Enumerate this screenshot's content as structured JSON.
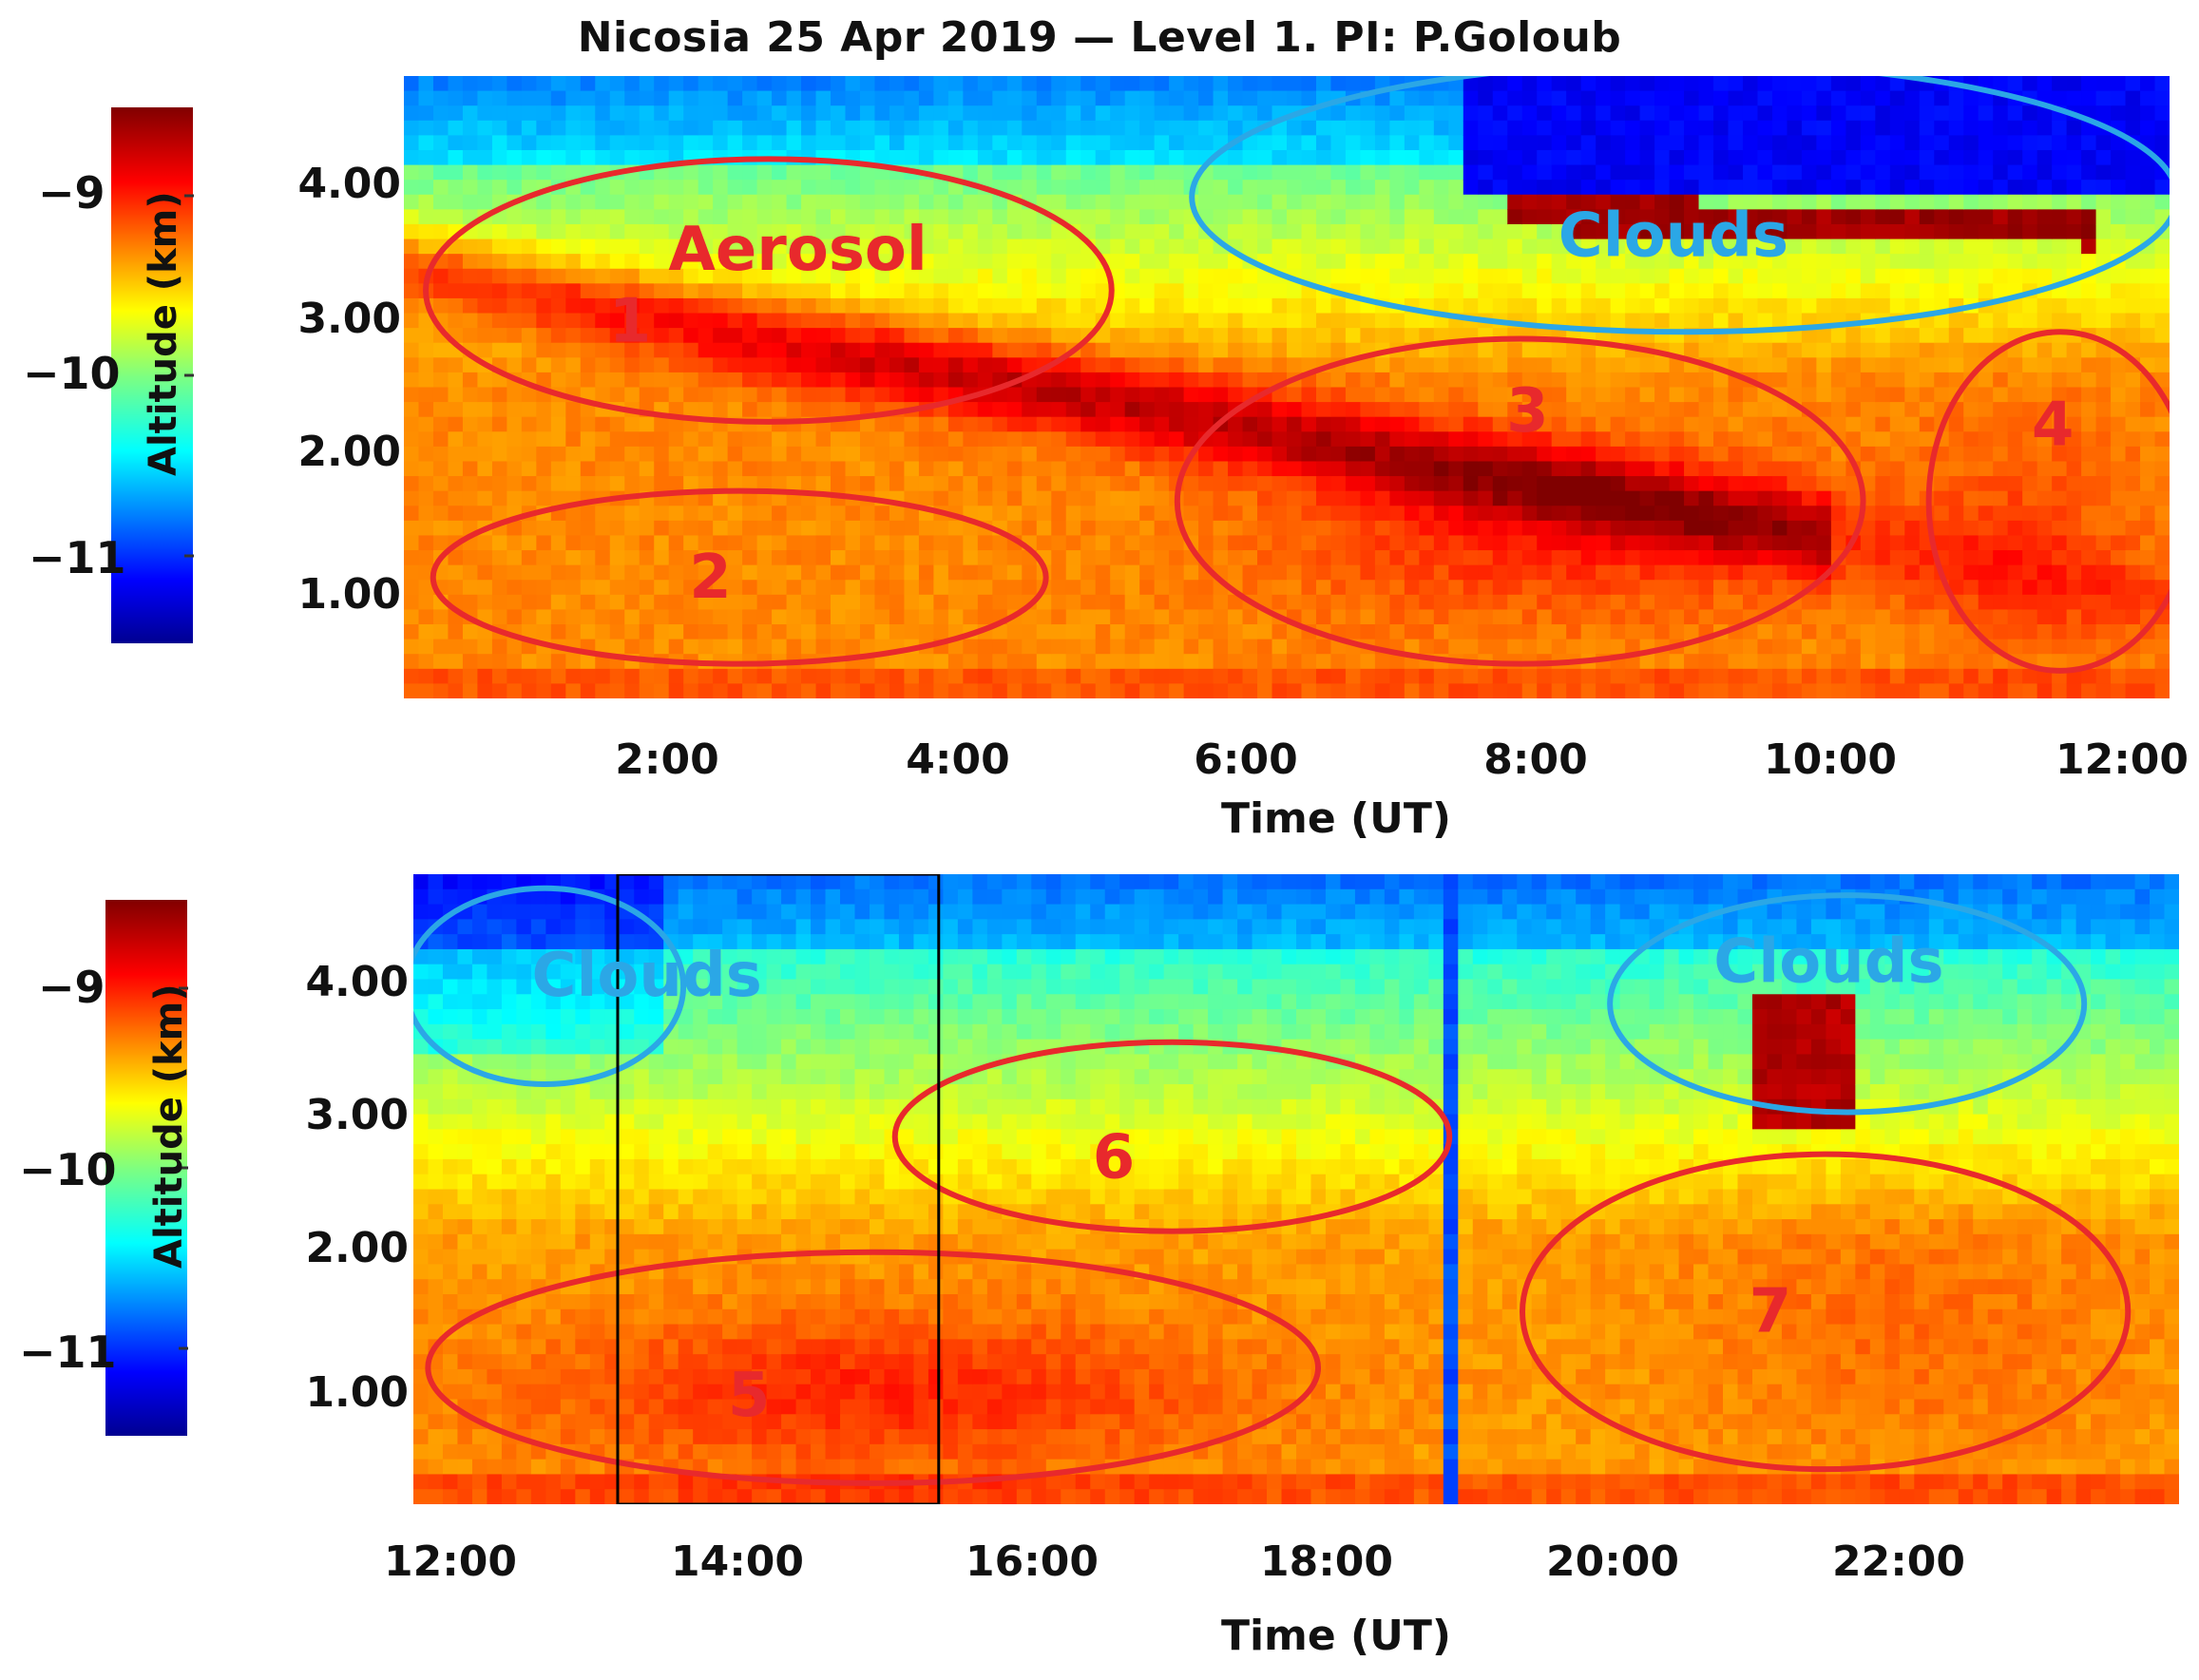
{
  "title": "Nicosia 25 Apr 2019 — Level 1. PI: P.Goloub",
  "colors": {
    "annotation_red": "#e8292c",
    "annotation_blue": "#2ba7e6",
    "box_black": "#000000"
  },
  "chart_data": [
    {
      "type": "heatmap",
      "panel": "top",
      "xlabel": "Time (UT)",
      "ylabel": "Altitude (km)",
      "x_ticks": [
        "2:00",
        "4:00",
        "6:00",
        "8:00",
        "10:00",
        "12:00"
      ],
      "y_ticks": [
        "1.00",
        "2.00",
        "3.00",
        "4.00"
      ],
      "xlim": [
        0.2,
        12.3
      ],
      "ylim": [
        0.3,
        4.8
      ],
      "colorbar": {
        "ticks": [
          "−9",
          "−10",
          "−11"
        ],
        "range": [
          -11.5,
          -8.5
        ],
        "colormap": "jet"
      },
      "annotations": [
        {
          "text": "Aerosol",
          "color": "red",
          "center": [
            2.9,
            3.52
          ]
        },
        {
          "text": "1",
          "color": "red",
          "center": [
            1.75,
            3.0
          ]
        },
        {
          "text": "2",
          "color": "red",
          "center": [
            2.3,
            1.15
          ]
        },
        {
          "text": "3",
          "color": "red",
          "center": [
            7.9,
            2.35
          ]
        },
        {
          "text": "4",
          "color": "red",
          "center": [
            11.5,
            2.25
          ]
        },
        {
          "text": "Clouds",
          "color": "blue",
          "center": [
            8.9,
            3.62
          ]
        }
      ],
      "regions": [
        {
          "label": "1",
          "shape": "ellipse",
          "color": "red",
          "x_range": [
            0.35,
            5.05
          ],
          "y_range": [
            2.3,
            4.2
          ]
        },
        {
          "label": "2",
          "shape": "ellipse",
          "color": "red",
          "x_range": [
            0.4,
            4.6
          ],
          "y_range": [
            0.55,
            1.8
          ]
        },
        {
          "label": "3",
          "shape": "ellipse",
          "color": "red",
          "x_range": [
            5.5,
            10.2
          ],
          "y_range": [
            0.55,
            2.9
          ]
        },
        {
          "label": "4",
          "shape": "ellipse",
          "color": "red",
          "x_range": [
            10.65,
            12.45
          ],
          "y_range": [
            0.5,
            2.95
          ]
        },
        {
          "label": "Clouds",
          "shape": "ellipse",
          "color": "blue",
          "x_range": [
            5.6,
            12.35
          ],
          "y_range": [
            2.95,
            4.9
          ]
        }
      ]
    },
    {
      "type": "heatmap",
      "panel": "bottom",
      "xlabel": "Time (UT)",
      "ylabel": "Altitude (km)",
      "x_ticks": [
        "12:00",
        "14:00",
        "16:00",
        "18:00",
        "20:00",
        "22:00"
      ],
      "y_ticks": [
        "1.00",
        "2.00",
        "3.00",
        "4.00"
      ],
      "xlim": [
        11.8,
        23.9
      ],
      "ylim": [
        0.3,
        4.8
      ],
      "colorbar": {
        "ticks": [
          "−9",
          "−10",
          "−11"
        ],
        "range": [
          -11.5,
          -8.5
        ],
        "colormap": "jet"
      },
      "annotations": [
        {
          "text": "Clouds",
          "color": "blue",
          "center": [
            13.4,
            4.05
          ]
        },
        {
          "text": "Clouds",
          "color": "blue",
          "center": [
            21.5,
            4.15
          ]
        },
        {
          "text": "5",
          "color": "red",
          "center": [
            14.1,
            1.05
          ]
        },
        {
          "text": "6",
          "color": "red",
          "center": [
            16.6,
            2.75
          ]
        },
        {
          "text": "7",
          "color": "red",
          "center": [
            21.1,
            1.65
          ]
        }
      ],
      "regions": [
        {
          "label": "5",
          "shape": "ellipse",
          "color": "red",
          "x_range": [
            11.9,
            18.0
          ],
          "y_range": [
            0.45,
            2.1
          ]
        },
        {
          "label": "6",
          "shape": "ellipse",
          "color": "red",
          "x_range": [
            15.1,
            18.9
          ],
          "y_range": [
            2.25,
            3.6
          ]
        },
        {
          "label": "7",
          "shape": "ellipse",
          "color": "red",
          "x_range": [
            19.4,
            23.55
          ],
          "y_range": [
            0.55,
            2.8
          ]
        },
        {
          "label": "Clouds-left",
          "shape": "ellipse",
          "color": "blue",
          "x_range": [
            11.75,
            13.65
          ],
          "y_range": [
            3.3,
            4.7
          ]
        },
        {
          "label": "Clouds-right",
          "shape": "ellipse",
          "color": "blue",
          "x_range": [
            20.0,
            23.25
          ],
          "y_range": [
            3.1,
            4.65
          ]
        },
        {
          "label": "box",
          "shape": "rect",
          "color": "black",
          "x_range": [
            13.2,
            15.4
          ],
          "y_range": [
            0.3,
            4.8
          ]
        }
      ]
    }
  ]
}
